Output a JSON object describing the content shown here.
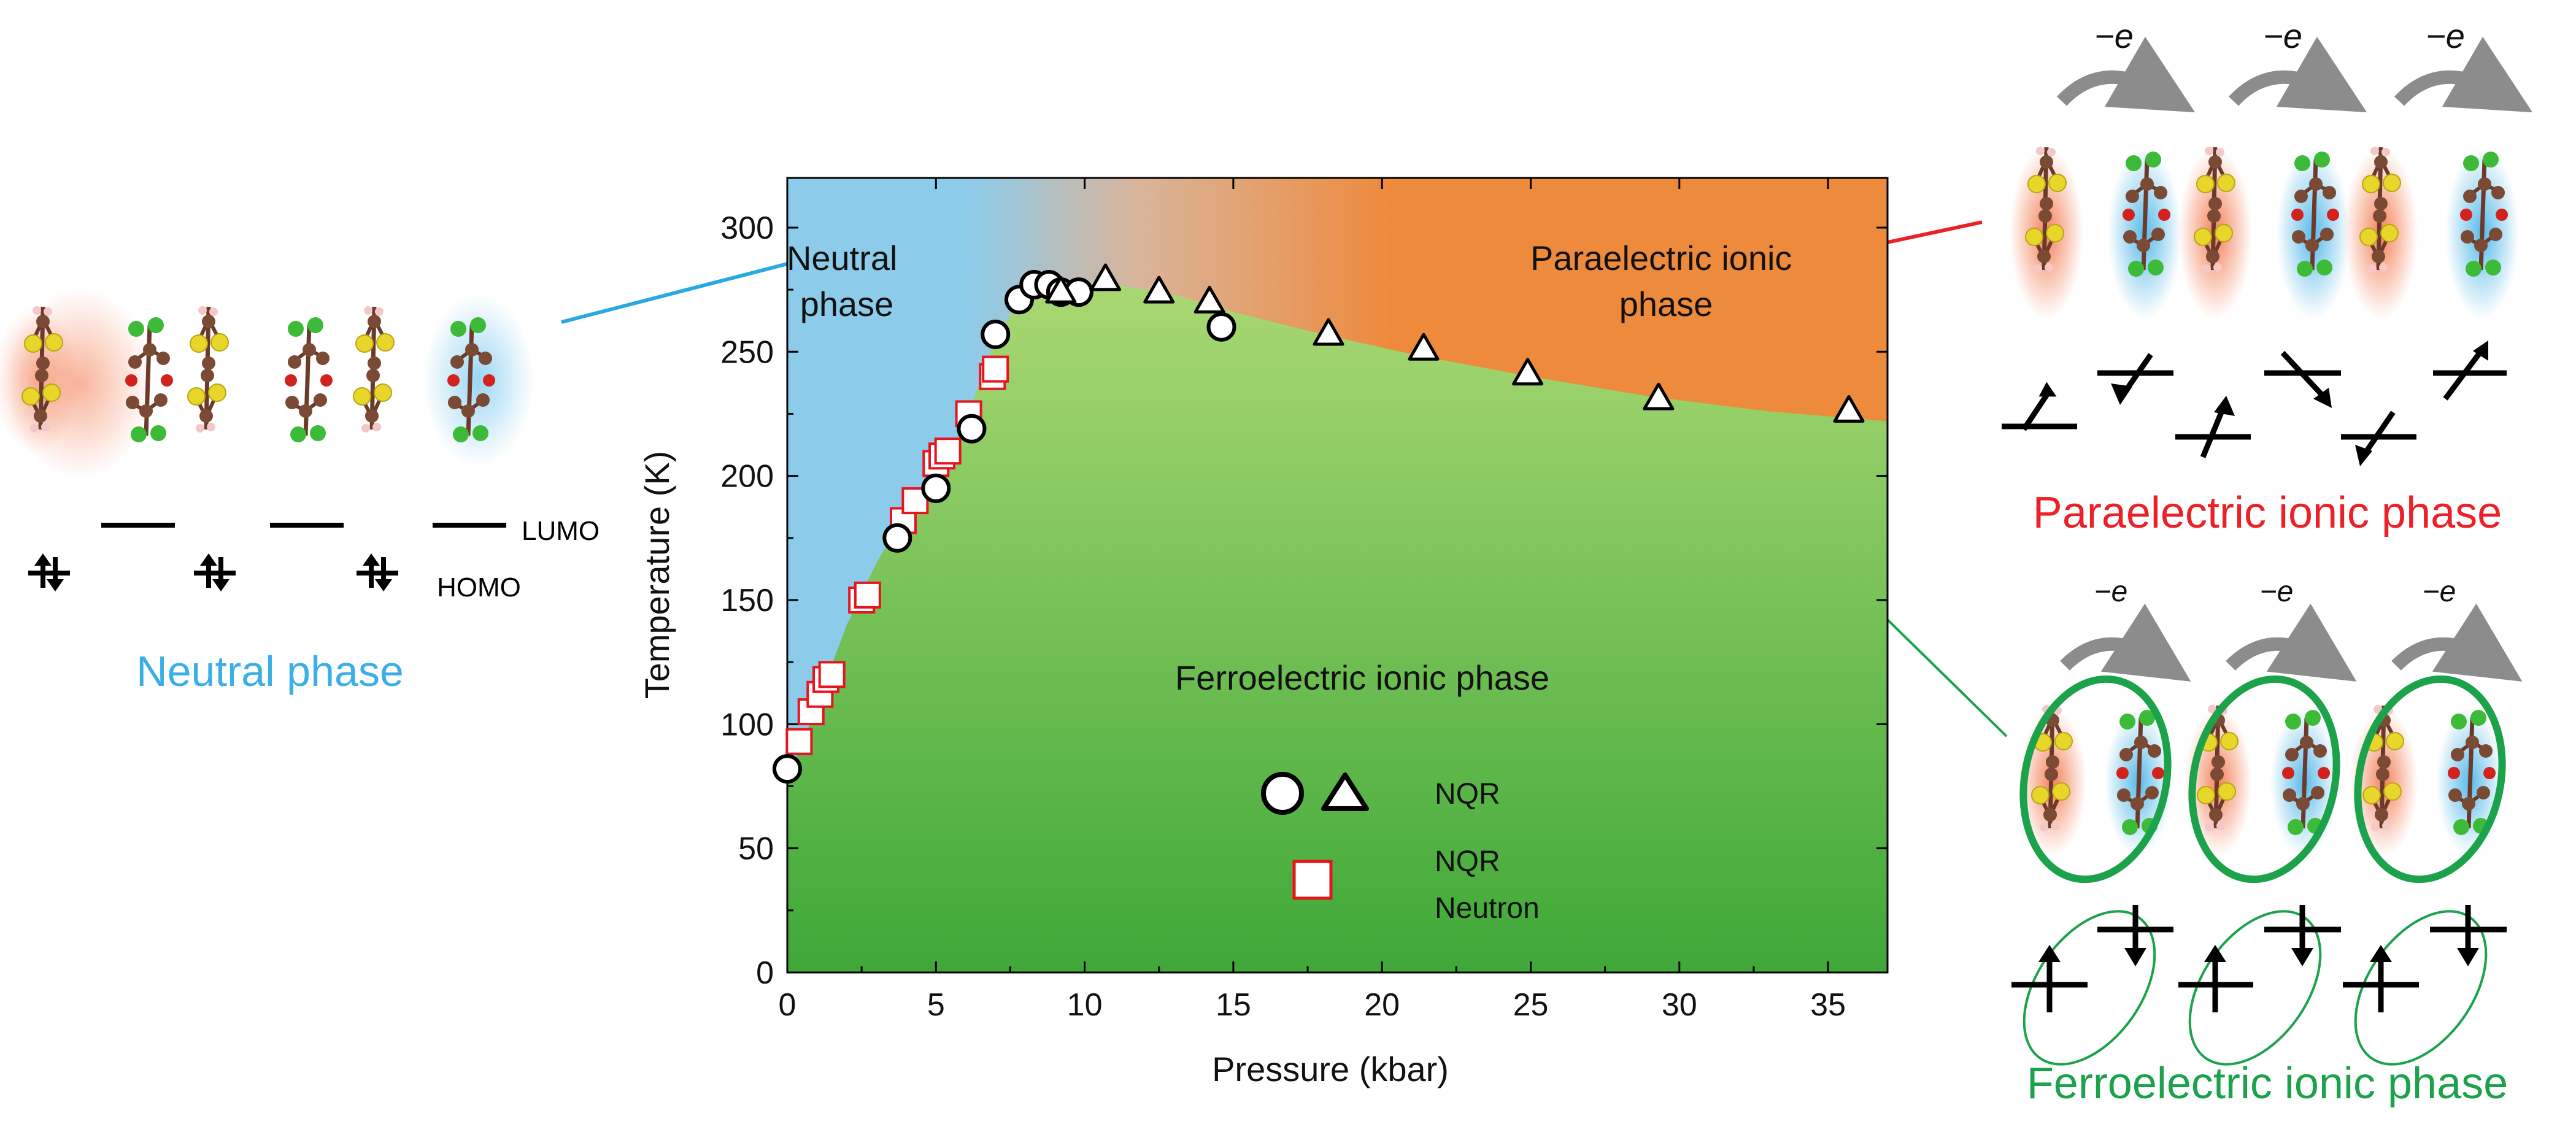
{
  "colors": {
    "neutral": "#3aaee6",
    "paraelectric": "#ec2027",
    "ferroelectric": "#1ba24b",
    "plot_blue": "#8dcbea",
    "plot_orange": "#ee8a3c",
    "plot_green_top": "#a7d674",
    "plot_green_bottom": "#3ea838",
    "connector_blue": "#29a9e1",
    "connector_red": "#ec2027",
    "connector_green": "#1ba24b",
    "marker_square": "#e8141d",
    "arrow_gray": "#8c8c8c",
    "ellipse_green": "#1ba24b"
  },
  "chart_data": {
    "type": "scatter",
    "xlabel": "Pressure (kbar)",
    "ylabel": "Temperature (K)",
    "xlim": [
      0,
      37
    ],
    "ylim": [
      0,
      320
    ],
    "xticks": [
      0,
      5,
      10,
      15,
      20,
      25,
      30,
      35
    ],
    "yticks": [
      0,
      50,
      100,
      150,
      200,
      250,
      300
    ],
    "regions": [
      {
        "name": "neutral",
        "label_lines": [
          "Neutral",
          "phase"
        ]
      },
      {
        "name": "paraelectric",
        "label_lines": [
          "Paraelectric ionic",
          "phase"
        ]
      },
      {
        "name": "ferroelectric",
        "label_lines": [
          "Ferroelectric ionic phase"
        ]
      }
    ],
    "boundary": {
      "neutral_ionic": [
        [
          0,
          78
        ],
        [
          0.5,
          92
        ],
        [
          1,
          108
        ],
        [
          2,
          140
        ],
        [
          3,
          165
        ],
        [
          4,
          185
        ],
        [
          5,
          200
        ],
        [
          6,
          222
        ],
        [
          7,
          255
        ],
        [
          8,
          274
        ],
        [
          9,
          277
        ],
        [
          10,
          278
        ],
        [
          11,
          277
        ],
        [
          13,
          273
        ],
        [
          15,
          266
        ],
        [
          18,
          257
        ],
        [
          21,
          249
        ],
        [
          25,
          240
        ],
        [
          29,
          232
        ],
        [
          33,
          226
        ],
        [
          37,
          222
        ]
      ]
    },
    "series": [
      {
        "name": "NQR (circles)",
        "marker": "circle",
        "points": [
          [
            0.0,
            82
          ],
          [
            3.7,
            175
          ],
          [
            5.0,
            195
          ],
          [
            6.2,
            219
          ],
          [
            7.0,
            257
          ],
          [
            7.8,
            271
          ],
          [
            8.3,
            277
          ],
          [
            8.8,
            277
          ],
          [
            9.2,
            274
          ],
          [
            9.8,
            274
          ],
          [
            14.6,
            260
          ]
        ]
      },
      {
        "name": "NQR (triangles)",
        "marker": "triangle",
        "points": [
          [
            9.2,
            274
          ],
          [
            10.7,
            279
          ],
          [
            12.5,
            274
          ],
          [
            14.2,
            270
          ],
          [
            18.2,
            257
          ],
          [
            21.4,
            251
          ],
          [
            24.9,
            241
          ],
          [
            29.3,
            231
          ],
          [
            35.7,
            226
          ]
        ]
      },
      {
        "name": "NQR / Neutron (squares)",
        "marker": "square",
        "points": [
          [
            0.4,
            93
          ],
          [
            0.8,
            105
          ],
          [
            1.1,
            112
          ],
          [
            1.3,
            118
          ],
          [
            1.5,
            120
          ],
          [
            2.5,
            150
          ],
          [
            2.7,
            152
          ],
          [
            3.9,
            182
          ],
          [
            4.3,
            190
          ],
          [
            5.0,
            205
          ],
          [
            5.2,
            208
          ],
          [
            5.4,
            210
          ],
          [
            6.1,
            225
          ],
          [
            6.9,
            240
          ],
          [
            7.0,
            243
          ]
        ]
      }
    ],
    "legend": [
      {
        "markers": [
          "circle",
          "triangle"
        ],
        "lines": [
          "NQR"
        ]
      },
      {
        "markers": [
          "square"
        ],
        "lines": [
          "NQR",
          "Neutron"
        ]
      }
    ],
    "legend_position": "bottom-center"
  },
  "left_panel": {
    "lumo_label": "LUMO",
    "homo_label": "HOMO",
    "caption": "Neutral phase"
  },
  "right_top_panel": {
    "transfer_labels": [
      "−e",
      "−e",
      "−e"
    ],
    "caption": "Paraelectric ionic phase"
  },
  "right_bottom_panel": {
    "transfer_labels": [
      "−e",
      "−e",
      "−e"
    ],
    "caption": "Ferroelectric ionic phase"
  }
}
